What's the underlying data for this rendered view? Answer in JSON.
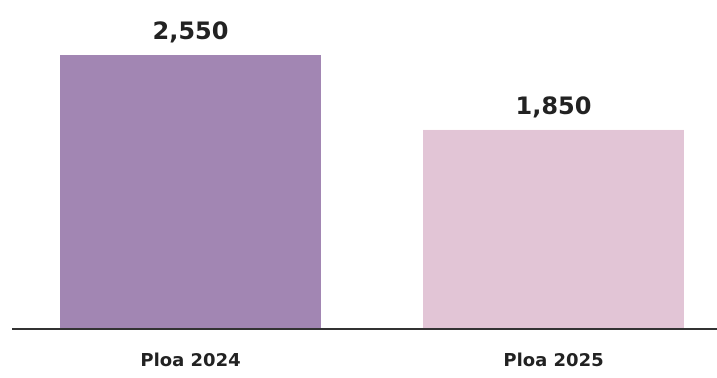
{
  "chart_data": {
    "type": "bar",
    "categories": [
      "Ploa 2024",
      "Ploa 2025"
    ],
    "values": [
      2550,
      1850
    ],
    "value_labels": [
      "2,550",
      "1,850"
    ],
    "bar_colors": [
      "#a286b3",
      "#e2c5d6"
    ],
    "axis_color": "#333333",
    "title": "",
    "xlabel": "",
    "ylabel": "",
    "ylim": [
      0,
      2550
    ],
    "grid": false,
    "legend": "none"
  }
}
